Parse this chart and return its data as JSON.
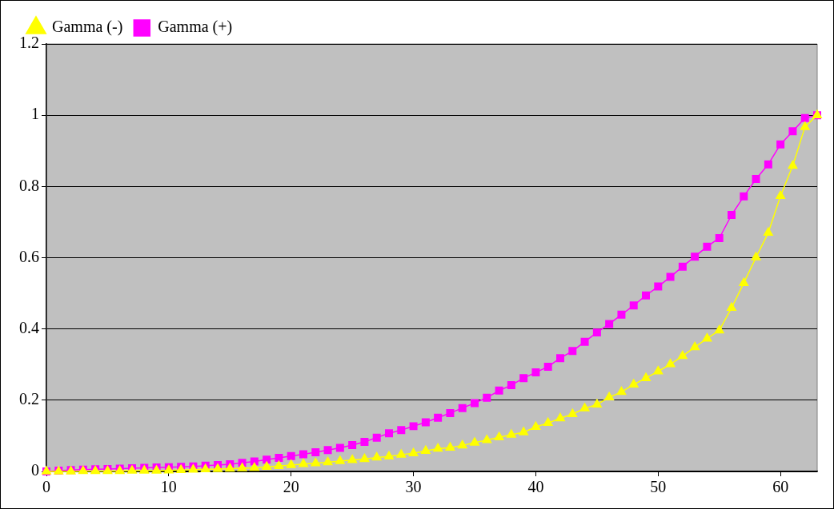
{
  "chart_data": {
    "type": "line",
    "x": [
      0,
      1,
      2,
      3,
      4,
      5,
      6,
      7,
      8,
      9,
      10,
      11,
      12,
      13,
      14,
      15,
      16,
      17,
      18,
      19,
      20,
      21,
      22,
      23,
      24,
      25,
      26,
      27,
      28,
      29,
      30,
      31,
      32,
      33,
      34,
      35,
      36,
      37,
      38,
      39,
      40,
      41,
      42,
      43,
      44,
      45,
      46,
      47,
      48,
      49,
      50,
      51,
      52,
      53,
      54,
      55,
      56,
      57,
      58,
      59,
      60,
      61,
      62,
      63
    ],
    "series": [
      {
        "name": "Gamma (+)",
        "color": "#ff00ff",
        "marker": "square",
        "values": [
          0,
          0.002,
          0.004,
          0.005,
          0.006,
          0.007,
          0.008,
          0.009,
          0.01,
          0.011,
          0.012,
          0.013,
          0.014,
          0.016,
          0.018,
          0.02,
          0.024,
          0.028,
          0.033,
          0.038,
          0.043,
          0.048,
          0.054,
          0.06,
          0.066,
          0.074,
          0.083,
          0.095,
          0.107,
          0.116,
          0.127,
          0.138,
          0.151,
          0.164,
          0.178,
          0.192,
          0.207,
          0.227,
          0.242,
          0.262,
          0.278,
          0.294,
          0.318,
          0.338,
          0.364,
          0.39,
          0.414,
          0.44,
          0.466,
          0.494,
          0.519,
          0.546,
          0.575,
          0.603,
          0.631,
          0.655,
          0.72,
          0.772,
          0.821,
          0.862,
          0.918,
          0.955,
          0.992,
          1.0
        ]
      },
      {
        "name": "Gamma (-)",
        "color": "#ffff00",
        "marker": "triangle",
        "values": [
          0,
          0,
          0,
          0.001,
          0.001,
          0.001,
          0.001,
          0.002,
          0.002,
          0.002,
          0.003,
          0.004,
          0.005,
          0.006,
          0.007,
          0.008,
          0.009,
          0.01,
          0.013,
          0.015,
          0.018,
          0.021,
          0.023,
          0.026,
          0.029,
          0.032,
          0.035,
          0.039,
          0.042,
          0.047,
          0.051,
          0.058,
          0.064,
          0.067,
          0.073,
          0.081,
          0.088,
          0.096,
          0.103,
          0.11,
          0.125,
          0.136,
          0.149,
          0.161,
          0.177,
          0.188,
          0.208,
          0.223,
          0.244,
          0.262,
          0.281,
          0.301,
          0.324,
          0.349,
          0.373,
          0.396,
          0.459,
          0.529,
          0.601,
          0.67,
          0.773,
          0.858,
          0.967,
          1.0
        ]
      }
    ],
    "xlim": [
      0,
      63
    ],
    "xticks": [
      0,
      10,
      20,
      30,
      40,
      50,
      60
    ],
    "ylim": [
      0,
      1.2
    ],
    "yticks": [
      0,
      0.2,
      0.4,
      0.6,
      0.8,
      1,
      1.2
    ],
    "grid": "y",
    "legend": "top left"
  }
}
